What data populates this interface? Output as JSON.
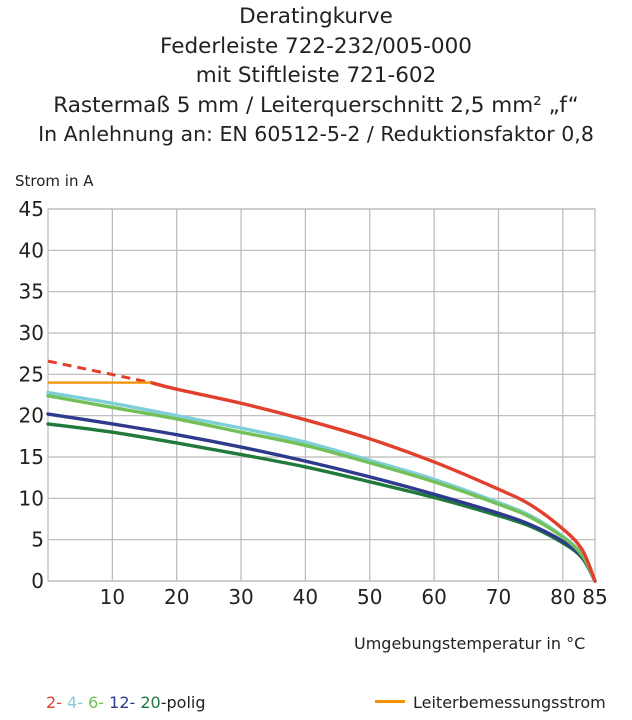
{
  "title_lines": [
    "Deratingkurve",
    "Federleiste 722-232/005-000",
    "mit Stiftleiste 721-602",
    "Rastermaß 5 mm / Leiterquerschnitt 2,5 mm² „f“",
    "In Anlehnung an: EN 60512-5-2 / Reduktionsfaktor 0,8"
  ],
  "chart_data": {
    "type": "line",
    "ylabel": "Strom in A",
    "xlabel": "Umgebungstemperatur in °C",
    "xlim": [
      0,
      85
    ],
    "ylim": [
      0,
      45
    ],
    "x_ticks": [
      10,
      20,
      30,
      40,
      50,
      60,
      70,
      80,
      85
    ],
    "y_ticks": [
      0,
      5,
      10,
      15,
      20,
      25,
      30,
      35,
      40,
      45
    ],
    "grid": true,
    "series": [
      {
        "name": "2-polig",
        "color": "#e2402e",
        "x": [
          0,
          16,
          20,
          30,
          40,
          50,
          60,
          70,
          75,
          80,
          83,
          85
        ],
        "y": [
          26.6,
          24.0,
          23.2,
          21.5,
          19.5,
          17.2,
          14.4,
          11.1,
          9.2,
          6.3,
          3.8,
          0
        ],
        "dashed_until_x": 16
      },
      {
        "name": "4-polig",
        "color": "#7fcfd8",
        "x": [
          0,
          10,
          20,
          30,
          40,
          50,
          60,
          70,
          75,
          80,
          83,
          85
        ],
        "y": [
          22.8,
          21.5,
          20.0,
          18.5,
          16.8,
          14.6,
          12.3,
          9.5,
          7.9,
          5.4,
          3.2,
          0
        ]
      },
      {
        "name": "6-polig",
        "color": "#74c058",
        "x": [
          0,
          10,
          20,
          30,
          40,
          50,
          60,
          70,
          75,
          80,
          83,
          85
        ],
        "y": [
          22.4,
          21.0,
          19.6,
          18.0,
          16.4,
          14.3,
          12.0,
          9.3,
          7.7,
          5.3,
          3.1,
          0
        ]
      },
      {
        "name": "12-polig",
        "color": "#2e3a8c",
        "x": [
          0,
          10,
          20,
          30,
          40,
          50,
          60,
          70,
          75,
          80,
          83,
          85
        ],
        "y": [
          20.2,
          19.0,
          17.7,
          16.2,
          14.5,
          12.6,
          10.5,
          8.2,
          6.8,
          4.8,
          2.9,
          0
        ]
      },
      {
        "name": "20-polig",
        "color": "#1f7a3c",
        "x": [
          0,
          10,
          20,
          30,
          40,
          50,
          60,
          70,
          75,
          80,
          83,
          85
        ],
        "y": [
          19.0,
          18.0,
          16.7,
          15.3,
          13.8,
          12.0,
          10.1,
          7.9,
          6.6,
          4.6,
          2.8,
          0
        ]
      }
    ],
    "rated_current": {
      "name": "Leiterbemessungsstrom",
      "value": 24,
      "color": "#f39200",
      "x_end": 16
    }
  },
  "legend": {
    "items": [
      {
        "text": "2-",
        "color": "#e2402e"
      },
      {
        "text": " 4-",
        "color": "#7fcfd8"
      },
      {
        "text": " 6-",
        "color": "#74c058"
      },
      {
        "text": " 12-",
        "color": "#2e3a8c"
      },
      {
        "text": " 20",
        "color": "#1f7a3c"
      },
      {
        "text": "-polig",
        "color": "#222222"
      }
    ],
    "rated_label": "Leiterbemessungsstrom"
  }
}
